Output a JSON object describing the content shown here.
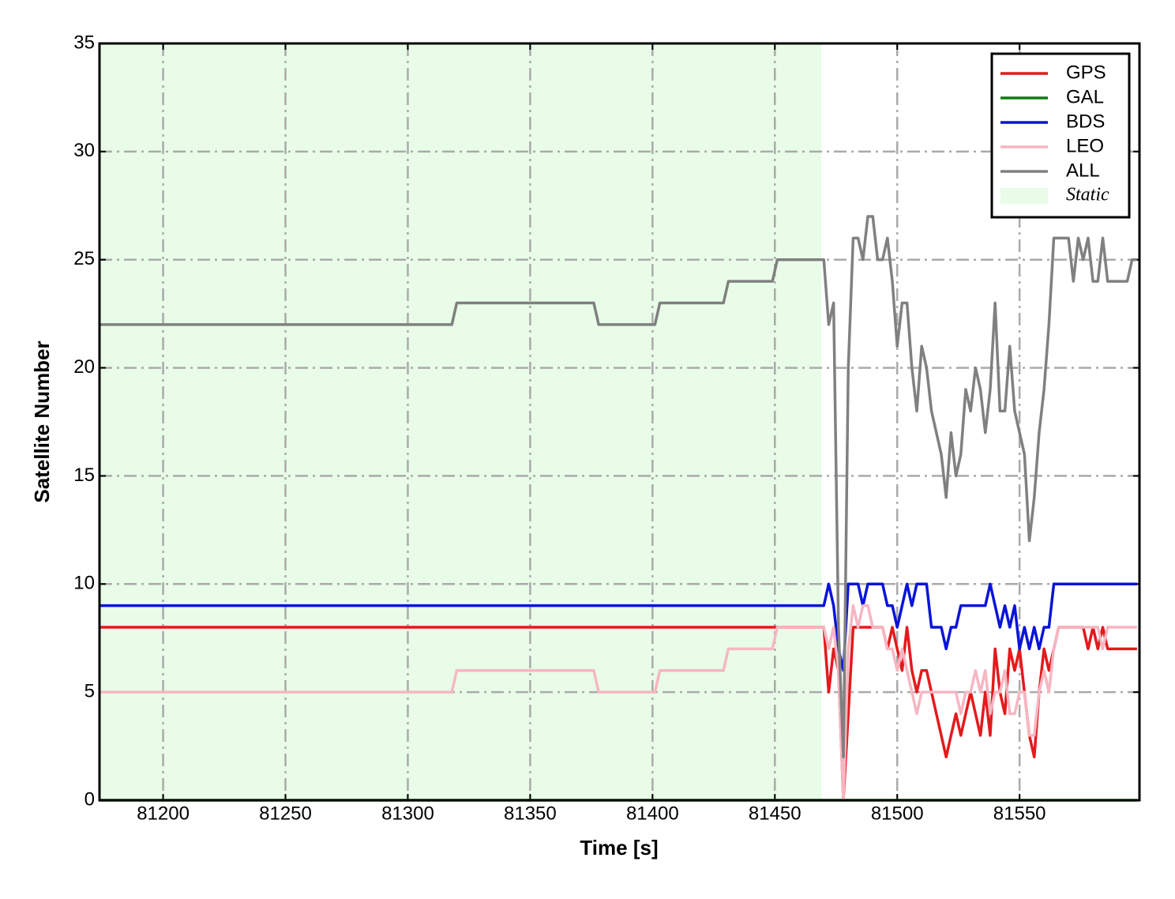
{
  "chart_data": {
    "type": "line",
    "xlabel": "Time [s]",
    "ylabel": "Satellite Number",
    "xlim": [
      81174,
      81599
    ],
    "ylim": [
      0,
      35
    ],
    "xticks": [
      81200,
      81250,
      81300,
      81350,
      81400,
      81450,
      81500,
      81550
    ],
    "yticks": [
      0,
      5,
      10,
      15,
      20,
      25,
      30,
      35
    ],
    "grid": true,
    "legend": "upper right",
    "shade": {
      "label": "Static",
      "color": "#e8fce8",
      "span": [
        81174,
        81469
      ]
    },
    "x": [
      81174,
      81318,
      81320,
      81376,
      81378,
      81401,
      81403,
      81429,
      81431,
      81449,
      81451,
      81468,
      81470,
      81472,
      81474,
      81476,
      81478,
      81480,
      81482,
      81484,
      81486,
      81488,
      81490,
      81492,
      81494,
      81496,
      81498,
      81500,
      81502,
      81504,
      81506,
      81508,
      81510,
      81512,
      81514,
      81516,
      81518,
      81520,
      81522,
      81524,
      81526,
      81528,
      81530,
      81532,
      81534,
      81536,
      81538,
      81540,
      81542,
      81544,
      81546,
      81548,
      81550,
      81552,
      81554,
      81556,
      81558,
      81560,
      81562,
      81564,
      81566,
      81568,
      81570,
      81572,
      81574,
      81576,
      81578,
      81580,
      81582,
      81584,
      81586,
      81588,
      81590,
      81592,
      81594,
      81596,
      81598
    ],
    "series": [
      {
        "name": "GPS",
        "color": "#e31a1c",
        "values": [
          8,
          8,
          8,
          8,
          8,
          8,
          8,
          8,
          8,
          8,
          8,
          8,
          8,
          5,
          7,
          6,
          0,
          4,
          8,
          8,
          8,
          8,
          8,
          8,
          8,
          7,
          8,
          7,
          6,
          8,
          6,
          5,
          6,
          6,
          5,
          4,
          3,
          2,
          3,
          4,
          3,
          4,
          5,
          4,
          3,
          5,
          3,
          7,
          5,
          4,
          7,
          6,
          7,
          5,
          3,
          2,
          5,
          7,
          6,
          7,
          8,
          8,
          8,
          8,
          8,
          8,
          7,
          8,
          7,
          8,
          7,
          7,
          7,
          7,
          7,
          7,
          7
        ]
      },
      {
        "name": "GAL",
        "color": "#127a12",
        "values": [
          0,
          0,
          0,
          0,
          0,
          0,
          0,
          0,
          0,
          0,
          0,
          0,
          0,
          0,
          0,
          0,
          0,
          0,
          0,
          0,
          0,
          0,
          0,
          0,
          0,
          0,
          0,
          0,
          0,
          0,
          0,
          0,
          0,
          0,
          0,
          0,
          0,
          0,
          0,
          0,
          0,
          0,
          0,
          0,
          0,
          0,
          0,
          0,
          0,
          0,
          0,
          0,
          0,
          0,
          0,
          0,
          0,
          0,
          0,
          0,
          0,
          0,
          0,
          0,
          0,
          0,
          0,
          0,
          0,
          0,
          0,
          0,
          0,
          0,
          0,
          0,
          0
        ]
      },
      {
        "name": "BDS",
        "color": "#0a14d8",
        "values": [
          9,
          9,
          9,
          9,
          9,
          9,
          9,
          9,
          9,
          9,
          9,
          9,
          9,
          10,
          9,
          7,
          6,
          10,
          10,
          10,
          9,
          10,
          10,
          10,
          10,
          9,
          9,
          8,
          9,
          10,
          9,
          10,
          10,
          10,
          8,
          8,
          8,
          7,
          8,
          8,
          9,
          9,
          9,
          9,
          9,
          9,
          10,
          9,
          8,
          9,
          8,
          9,
          7,
          8,
          7,
          8,
          7,
          8,
          8,
          10,
          10,
          10,
          10,
          10,
          10,
          10,
          10,
          10,
          10,
          10,
          10,
          10,
          10,
          10,
          10,
          10,
          10
        ]
      },
      {
        "name": "LEO",
        "color": "#f7b6c2",
        "values": [
          5,
          5,
          6,
          6,
          5,
          5,
          6,
          6,
          7,
          7,
          8,
          8,
          8,
          7,
          8,
          6,
          0,
          7,
          9,
          8,
          9,
          9,
          8,
          8,
          8,
          7,
          7,
          6,
          7,
          6,
          5,
          4,
          5,
          5,
          5,
          5,
          5,
          5,
          5,
          5,
          4,
          5,
          5,
          6,
          5,
          6,
          4,
          5,
          5,
          6,
          4,
          4,
          5,
          5,
          3,
          3,
          5,
          6,
          5,
          7,
          8,
          8,
          8,
          8,
          8,
          8,
          8,
          8,
          8,
          7,
          8,
          8,
          8,
          8,
          8,
          8,
          8
        ]
      },
      {
        "name": "ALL",
        "color": "#808080",
        "values": [
          22,
          22,
          23,
          23,
          22,
          22,
          23,
          23,
          24,
          24,
          25,
          25,
          25,
          22,
          23,
          8,
          2,
          20,
          26,
          26,
          25,
          27,
          27,
          25,
          25,
          26,
          24,
          21,
          23,
          23,
          20,
          18,
          21,
          20,
          18,
          17,
          16,
          14,
          17,
          15,
          16,
          19,
          18,
          20,
          19,
          17,
          19,
          23,
          18,
          18,
          21,
          18,
          17,
          16,
          12,
          14,
          17,
          19,
          22,
          26,
          26,
          26,
          26,
          24,
          26,
          25,
          26,
          24,
          24,
          26,
          24,
          24,
          24,
          24,
          24,
          25,
          25
        ]
      }
    ]
  }
}
